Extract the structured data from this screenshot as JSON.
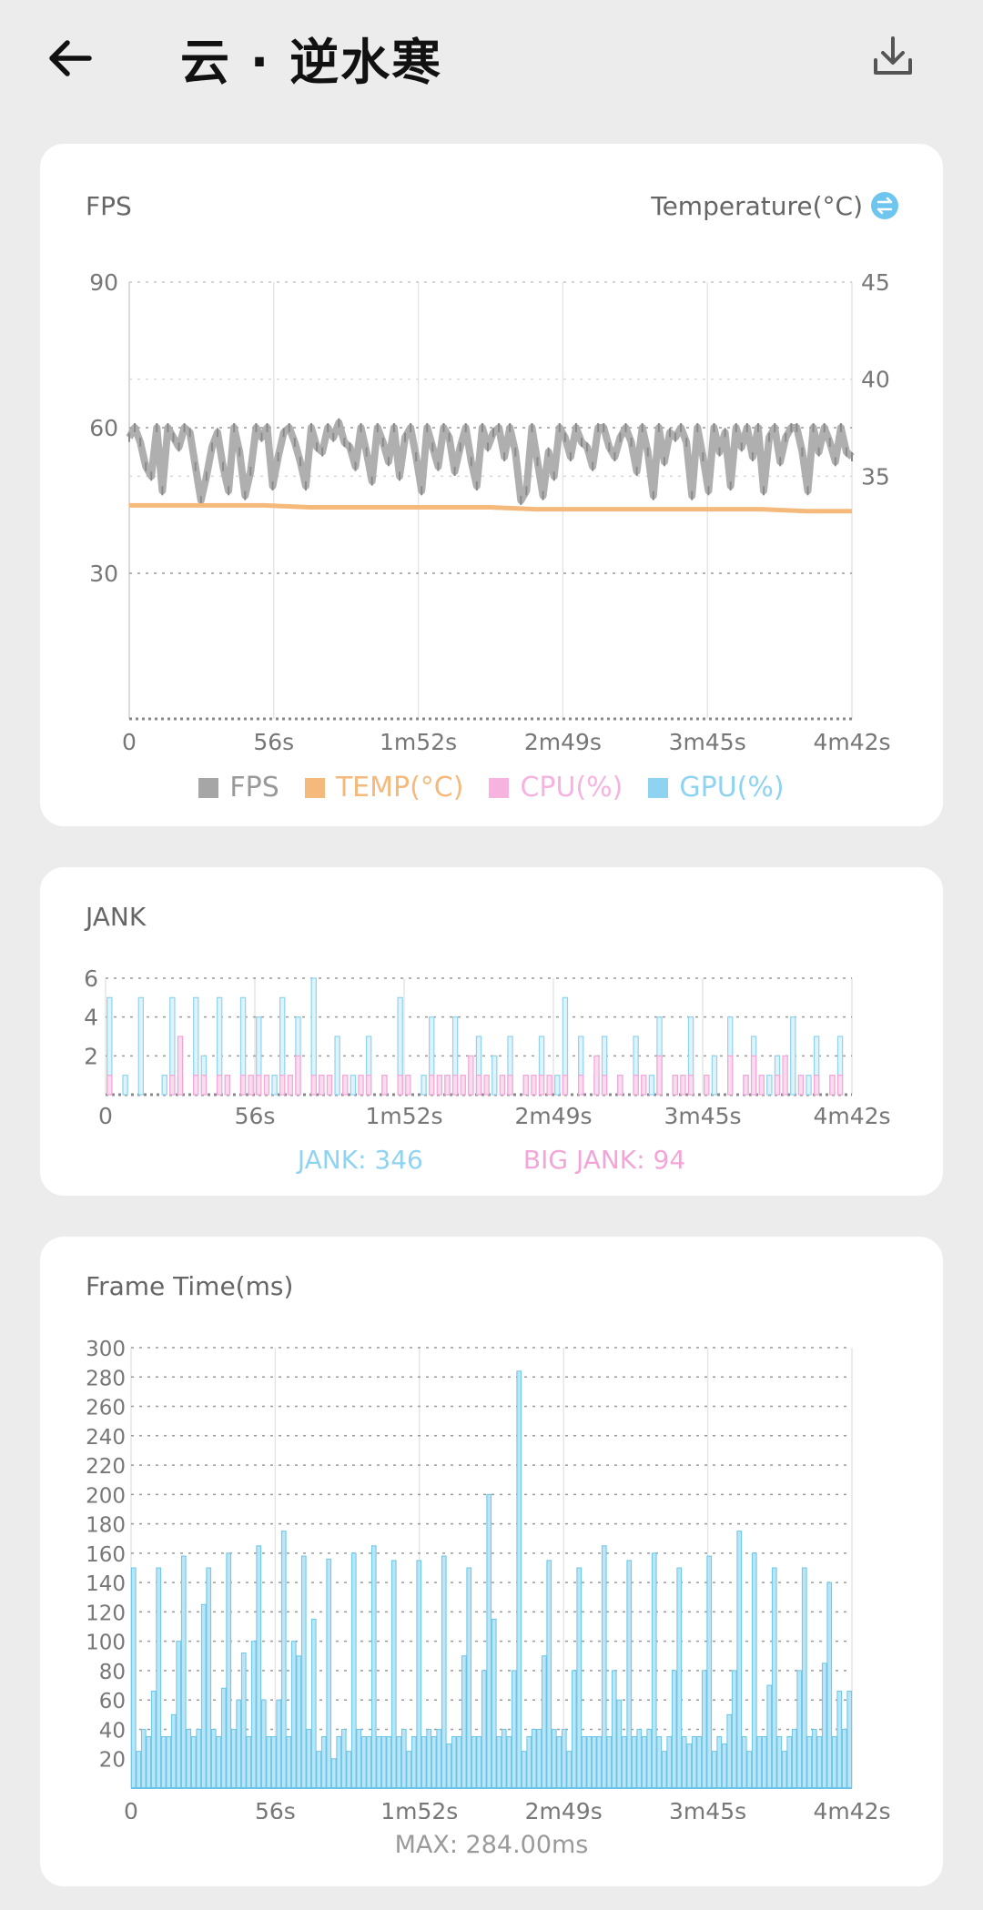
{
  "header": {
    "title": "云 · 逆水寒",
    "back_icon": "arrow-left-icon",
    "download_icon": "download-icon"
  },
  "fps_card": {
    "title": "FPS",
    "right_title": "Temperature(°C)",
    "swap_icon": "swap-icon",
    "legend": [
      {
        "label": "FPS",
        "color": "#a6a6a6"
      },
      {
        "label": "TEMP(°C)",
        "color": "#f5b97b"
      },
      {
        "label": "CPU(%)",
        "color": "#f7b3e0"
      },
      {
        "label": "GPU(%)",
        "color": "#8fd3f2"
      }
    ]
  },
  "jank_card": {
    "title": "JANK",
    "jank_label": "JANK: 346",
    "big_jank_label": "BIG JANK: 94",
    "jank_color": "#8fd3f2",
    "big_jank_color": "#f2a6d8"
  },
  "frame_card": {
    "title": "Frame Time(ms)",
    "max_label": "MAX: 284.00ms"
  },
  "chart_data": [
    {
      "type": "line",
      "title": "FPS",
      "x_tick_labels": [
        "0",
        "56s",
        "1m52s",
        "2m49s",
        "3m45s",
        "4m42s"
      ],
      "y_left_ticks": [
        "90",
        "60",
        "30"
      ],
      "ylim": [
        0,
        90
      ],
      "y_right_label": "Temperature(°C)",
      "y_right_ticks": [
        "45",
        "40",
        "35"
      ],
      "y_right_lim": [
        22.5,
        45
      ],
      "legend_position": "bottom",
      "series": [
        {
          "name": "FPS",
          "color": "#a6a6a6",
          "values": [
            58,
            60,
            57,
            52,
            50,
            60,
            47,
            60,
            58,
            56,
            60,
            59,
            52,
            45,
            50,
            56,
            59,
            52,
            47,
            60,
            55,
            46,
            51,
            60,
            58,
            60,
            48,
            54,
            59,
            60,
            57,
            53,
            48,
            60,
            56,
            55,
            60,
            58,
            61,
            57,
            56,
            52,
            60,
            55,
            49,
            60,
            57,
            53,
            60,
            50,
            58,
            60,
            54,
            47,
            60,
            56,
            52,
            60,
            58,
            51,
            56,
            60,
            53,
            48,
            60,
            56,
            59,
            60,
            54,
            60,
            55,
            45,
            47,
            60,
            53,
            46,
            55,
            50,
            60,
            58,
            54,
            60,
            57,
            56,
            52,
            60,
            60,
            56,
            54,
            58,
            60,
            57,
            51,
            60,
            55,
            46,
            60,
            53,
            59,
            58,
            60,
            57,
            46,
            60,
            54,
            47,
            60,
            55,
            59,
            48,
            60,
            56,
            60,
            54,
            60,
            47,
            58,
            60,
            53,
            58,
            60,
            60,
            55,
            47,
            60,
            55,
            60,
            57,
            53,
            60,
            55,
            54
          ]
        },
        {
          "name": "TEMP(°C)",
          "axis": "right",
          "color": "#f5b97b",
          "values": [
            33.5,
            33.5,
            33.5,
            33.5,
            33.4,
            33.4,
            33.4,
            33.4,
            33.4,
            33.3,
            33.3,
            33.3,
            33.3,
            33.3,
            33.3,
            33.2,
            33.2
          ]
        }
      ]
    },
    {
      "type": "bar",
      "title": "JANK",
      "x_tick_labels": [
        "0",
        "56s",
        "1m52s",
        "2m49s",
        "3m45s",
        "4m42s"
      ],
      "y_ticks": [
        "6",
        "4",
        "2"
      ],
      "ylim": [
        0,
        6
      ],
      "series": [
        {
          "name": "JANK",
          "color": "#8fd3f2",
          "values": [
            5,
            0,
            1,
            0,
            5,
            0,
            0,
            1,
            5,
            1,
            0,
            5,
            2,
            0,
            5,
            1,
            0,
            5,
            0,
            4,
            0,
            1,
            5,
            0,
            4,
            0,
            6,
            1,
            0,
            3,
            0,
            1,
            0,
            3,
            0,
            1,
            0,
            5,
            0,
            0,
            1,
            4,
            0,
            1,
            4,
            0,
            1,
            3,
            0,
            2,
            0,
            3,
            0,
            1,
            0,
            3,
            0,
            1,
            5,
            0,
            3,
            0,
            1,
            3,
            0,
            1,
            0,
            3,
            0,
            1,
            4,
            0,
            1,
            0,
            4,
            0,
            1,
            2,
            0,
            4,
            0,
            1,
            3,
            0,
            1,
            2,
            0,
            4,
            0,
            1,
            3,
            0,
            1,
            3,
            0
          ]
        },
        {
          "name": "BIG JANK",
          "color": "#f2a6d8",
          "values": [
            1,
            0,
            0,
            0,
            0,
            0,
            0,
            0,
            1,
            3,
            0,
            1,
            1,
            0,
            1,
            1,
            0,
            1,
            1,
            1,
            1,
            0,
            1,
            1,
            2,
            0,
            1,
            1,
            1,
            0,
            1,
            0,
            1,
            1,
            0,
            1,
            0,
            1,
            1,
            0,
            0,
            1,
            1,
            1,
            1,
            1,
            2,
            1,
            1,
            0,
            1,
            1,
            0,
            1,
            1,
            1,
            1,
            0,
            1,
            0,
            1,
            0,
            2,
            1,
            0,
            1,
            0,
            1,
            1,
            0,
            2,
            0,
            1,
            1,
            1,
            0,
            1,
            0,
            0,
            2,
            0,
            1,
            2,
            1,
            0,
            1,
            2,
            0,
            1,
            0,
            1,
            0,
            1,
            1,
            0
          ]
        }
      ]
    },
    {
      "type": "bar",
      "title": "Frame Time(ms)",
      "x_tick_labels": [
        "0",
        "56s",
        "1m52s",
        "2m49s",
        "3m45s",
        "4m42s"
      ],
      "y_ticks": [
        "300",
        "280",
        "260",
        "240",
        "220",
        "200",
        "180",
        "160",
        "140",
        "120",
        "100",
        "80",
        "60",
        "40",
        "20"
      ],
      "ylim": [
        0,
        300
      ],
      "max_value": 284,
      "series": [
        {
          "name": "Frame Time",
          "color": "#9ddcf2",
          "values": [
            150,
            25,
            40,
            35,
            66,
            150,
            35,
            35,
            50,
            100,
            158,
            40,
            35,
            40,
            125,
            150,
            40,
            35,
            68,
            160,
            40,
            60,
            92,
            35,
            100,
            165,
            60,
            35,
            35,
            60,
            175,
            35,
            100,
            90,
            158,
            40,
            115,
            25,
            35,
            156,
            20,
            35,
            40,
            25,
            160,
            40,
            35,
            35,
            165,
            35,
            35,
            35,
            155,
            35,
            40,
            25,
            35,
            155,
            35,
            40,
            35,
            40,
            158,
            30,
            35,
            35,
            90,
            150,
            35,
            35,
            80,
            200,
            115,
            35,
            40,
            35,
            80,
            284,
            25,
            35,
            40,
            40,
            90,
            155,
            40,
            35,
            40,
            25,
            80,
            150,
            35,
            35,
            35,
            35,
            165,
            35,
            80,
            60,
            35,
            155,
            35,
            40,
            35,
            40,
            160,
            35,
            25,
            35,
            80,
            150,
            35,
            30,
            35,
            35,
            80,
            158,
            25,
            35,
            30,
            50,
            80,
            175,
            35,
            25,
            160,
            35,
            35,
            70,
            150,
            35,
            25,
            35,
            40,
            80,
            150,
            35,
            40,
            35,
            85,
            140,
            35,
            66,
            40,
            66
          ]
        }
      ]
    }
  ]
}
